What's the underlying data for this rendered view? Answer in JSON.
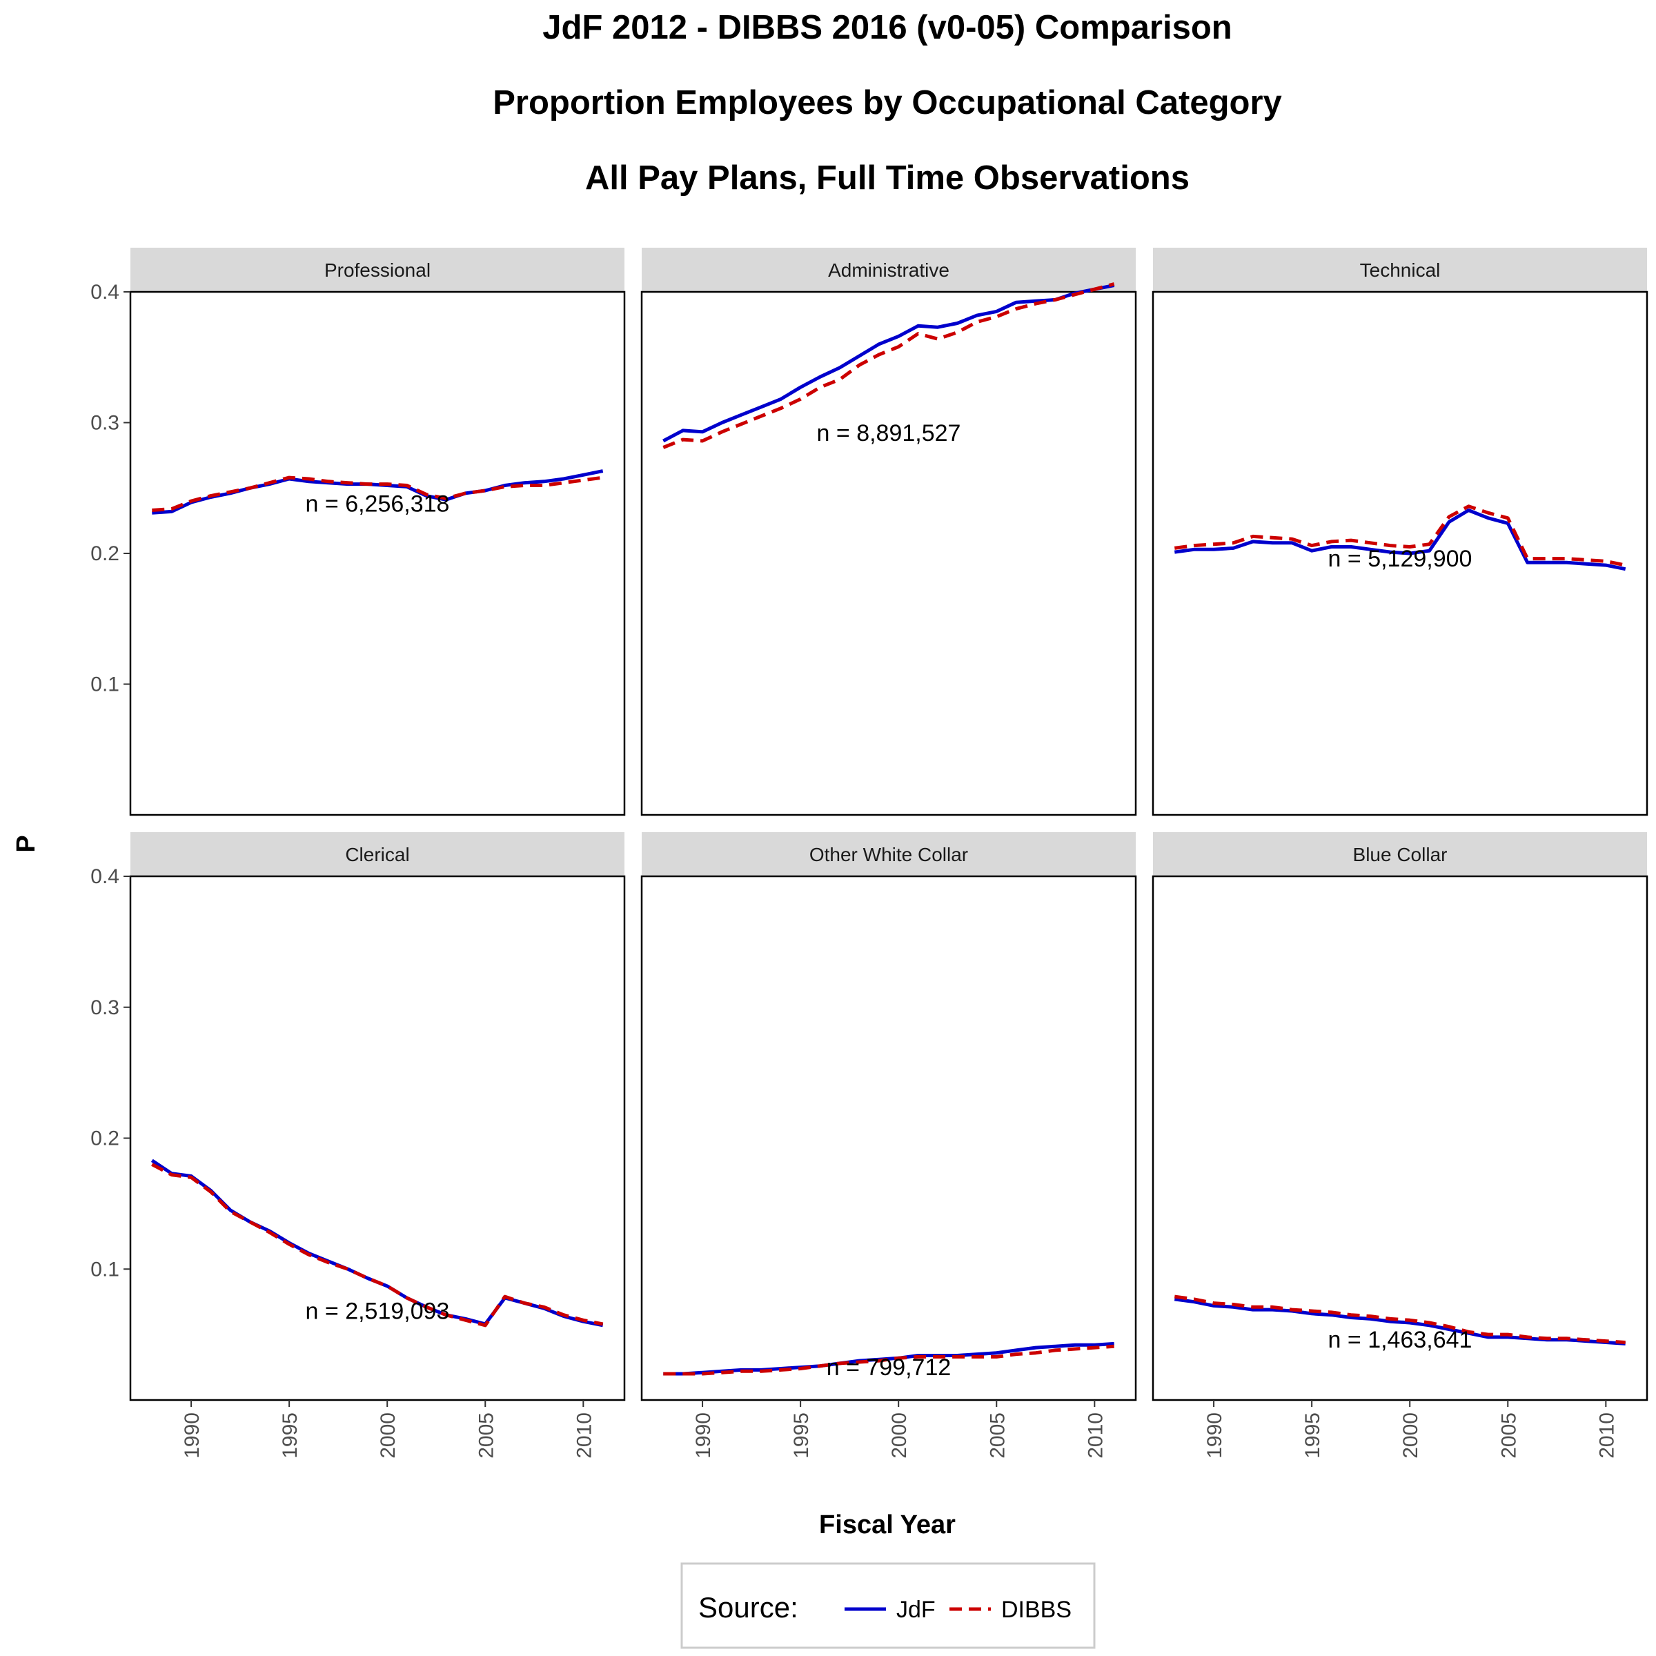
{
  "chart_data": {
    "type": "line",
    "title_lines": [
      "JdF 2012 - DIBBS 2016 (v0-05) Comparison",
      "Proportion Employees by Occupational Category",
      "All Pay Plans, Full Time Observations"
    ],
    "xlabel": "Fiscal Year",
    "ylabel": "P",
    "xlim": [
      1986.9,
      2012.1
    ],
    "ylim": [
      0.0,
      0.4
    ],
    "x_ticks": [
      1990,
      1995,
      2000,
      2005,
      2010
    ],
    "y_ticks": [
      0.1,
      0.2,
      0.3,
      0.4
    ],
    "x_tick_labels": [
      "1990",
      "1995",
      "2000",
      "2005",
      "2010"
    ],
    "y_tick_labels": [
      "0.1",
      "0.2",
      "0.3",
      "0.4"
    ],
    "grid": false,
    "legend": {
      "placement": "bottom",
      "title": "Source:",
      "entries": [
        {
          "label": "JdF",
          "color": "#0000cc",
          "style": "solid"
        },
        {
          "label": "DIBBS",
          "color": "#cc0000",
          "style": "dashed"
        }
      ]
    },
    "x": [
      1988,
      1989,
      1990,
      1991,
      1992,
      1993,
      1994,
      1995,
      1996,
      1997,
      1998,
      1999,
      2000,
      2001,
      2002,
      2003,
      2004,
      2005,
      2006,
      2007,
      2008,
      2009,
      2010,
      2011
    ],
    "panels": [
      {
        "name": "Professional",
        "annotation": "n = 6,256,318",
        "annotation_x": 1999.5,
        "annotation_y": 0.232,
        "series": [
          {
            "name": "JdF",
            "values": [
              0.231,
              0.232,
              0.239,
              0.243,
              0.246,
              0.25,
              0.253,
              0.257,
              0.255,
              0.254,
              0.253,
              0.253,
              0.252,
              0.251,
              0.244,
              0.241,
              0.246,
              0.248,
              0.252,
              0.254,
              0.255,
              0.257,
              0.26,
              0.263
            ]
          },
          {
            "name": "DIBBS",
            "values": [
              0.233,
              0.234,
              0.24,
              0.244,
              0.247,
              0.25,
              0.254,
              0.258,
              0.257,
              0.255,
              0.254,
              0.253,
              0.253,
              0.252,
              0.245,
              0.242,
              0.246,
              0.248,
              0.251,
              0.252,
              0.252,
              0.254,
              0.256,
              0.258
            ]
          }
        ]
      },
      {
        "name": "Administrative",
        "annotation": "n = 8,891,527",
        "annotation_x": 1999.5,
        "annotation_y": 0.286,
        "series": [
          {
            "name": "JdF",
            "values": [
              0.286,
              0.294,
              0.293,
              0.3,
              0.306,
              0.312,
              0.318,
              0.327,
              0.335,
              0.342,
              0.351,
              0.36,
              0.366,
              0.374,
              0.373,
              0.376,
              0.382,
              0.385,
              0.392,
              0.393,
              0.394,
              0.399,
              0.402,
              0.405
            ]
          },
          {
            "name": "DIBBS",
            "values": [
              0.281,
              0.287,
              0.286,
              0.293,
              0.299,
              0.305,
              0.311,
              0.318,
              0.327,
              0.333,
              0.344,
              0.352,
              0.358,
              0.368,
              0.364,
              0.369,
              0.377,
              0.381,
              0.387,
              0.391,
              0.394,
              0.398,
              0.402,
              0.406
            ]
          }
        ]
      },
      {
        "name": "Technical",
        "annotation": "n = 5,129,900",
        "annotation_x": 1999.5,
        "annotation_y": 0.19,
        "series": [
          {
            "name": "JdF",
            "values": [
              0.201,
              0.203,
              0.203,
              0.204,
              0.209,
              0.208,
              0.208,
              0.202,
              0.205,
              0.205,
              0.203,
              0.201,
              0.2,
              0.202,
              0.224,
              0.233,
              0.227,
              0.223,
              0.193,
              0.193,
              0.193,
              0.192,
              0.191,
              0.188
            ]
          },
          {
            "name": "DIBBS",
            "values": [
              0.204,
              0.206,
              0.207,
              0.208,
              0.213,
              0.212,
              0.211,
              0.206,
              0.209,
              0.21,
              0.208,
              0.206,
              0.205,
              0.207,
              0.228,
              0.236,
              0.231,
              0.227,
              0.196,
              0.196,
              0.196,
              0.195,
              0.194,
              0.191
            ]
          }
        ]
      },
      {
        "name": "Clerical",
        "annotation": "n = 2,519,093",
        "annotation_x": 1999.5,
        "annotation_y": 0.062,
        "series": [
          {
            "name": "JdF",
            "values": [
              0.183,
              0.173,
              0.171,
              0.16,
              0.145,
              0.136,
              0.129,
              0.12,
              0.112,
              0.106,
              0.1,
              0.093,
              0.087,
              0.078,
              0.071,
              0.065,
              0.062,
              0.058,
              0.078,
              0.074,
              0.07,
              0.064,
              0.06,
              0.057
            ]
          },
          {
            "name": "DIBBS",
            "values": [
              0.18,
              0.172,
              0.17,
              0.159,
              0.144,
              0.136,
              0.128,
              0.119,
              0.111,
              0.105,
              0.1,
              0.093,
              0.087,
              0.078,
              0.071,
              0.065,
              0.061,
              0.057,
              0.079,
              0.074,
              0.071,
              0.065,
              0.061,
              0.058
            ]
          }
        ]
      },
      {
        "name": "Other White Collar",
        "annotation": "n = 799,712",
        "annotation_x": 1999.5,
        "annotation_y": 0.019,
        "series": [
          {
            "name": "JdF",
            "values": [
              0.02,
              0.02,
              0.021,
              0.022,
              0.023,
              0.023,
              0.024,
              0.025,
              0.026,
              0.028,
              0.03,
              0.031,
              0.032,
              0.034,
              0.034,
              0.034,
              0.035,
              0.036,
              0.038,
              0.04,
              0.041,
              0.042,
              0.042,
              0.043
            ]
          },
          {
            "name": "DIBBS",
            "values": [
              0.02,
              0.02,
              0.02,
              0.021,
              0.022,
              0.022,
              0.023,
              0.024,
              0.026,
              0.028,
              0.029,
              0.03,
              0.032,
              0.033,
              0.033,
              0.033,
              0.033,
              0.033,
              0.035,
              0.036,
              0.038,
              0.039,
              0.04,
              0.041
            ]
          }
        ]
      },
      {
        "name": "Blue Collar",
        "annotation": "n = 1,463,641",
        "annotation_x": 1999.5,
        "annotation_y": 0.04,
        "series": [
          {
            "name": "JdF",
            "values": [
              0.077,
              0.075,
              0.072,
              0.071,
              0.069,
              0.069,
              0.068,
              0.066,
              0.065,
              0.063,
              0.062,
              0.06,
              0.059,
              0.057,
              0.054,
              0.051,
              0.048,
              0.048,
              0.047,
              0.046,
              0.046,
              0.045,
              0.044,
              0.043
            ]
          },
          {
            "name": "DIBBS",
            "values": [
              0.079,
              0.077,
              0.074,
              0.073,
              0.071,
              0.071,
              0.069,
              0.068,
              0.067,
              0.065,
              0.064,
              0.062,
              0.061,
              0.059,
              0.056,
              0.052,
              0.05,
              0.05,
              0.048,
              0.047,
              0.047,
              0.046,
              0.045,
              0.044
            ]
          }
        ]
      }
    ]
  }
}
